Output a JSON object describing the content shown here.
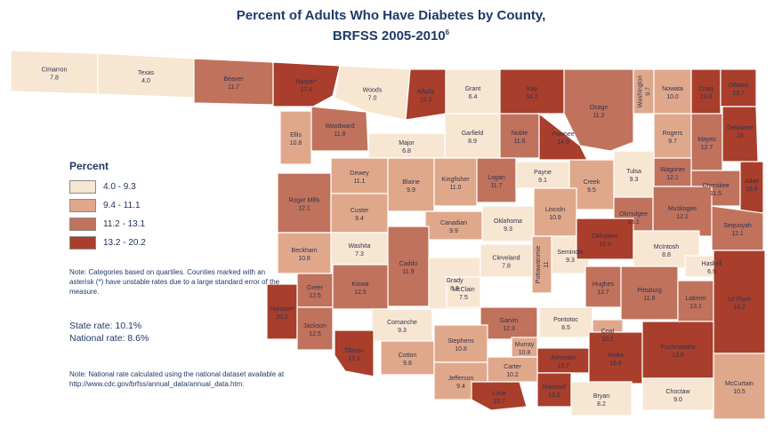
{
  "title_line1": "Percent of Adults Who Have Diabetes by County,",
  "title_line2": "BRFSS 2005-2010",
  "title_sup": "6",
  "legend": {
    "title": "Percent",
    "items": [
      {
        "label": "4.0 - 9.3",
        "color": "#f7e6d2"
      },
      {
        "label": "9.4 - 11.1",
        "color": "#e0a88b"
      },
      {
        "label": "11.2 - 13.1",
        "color": "#c0725c"
      },
      {
        "label": "13.2 - 20.2",
        "color": "#a83e2b"
      }
    ]
  },
  "note_quartiles": "Note: Categories based on quartiles. Counties marked with an asterisk (*) have unstable rates due to a large standard error of the measure.",
  "state_rate": "State rate: 10.1%",
  "national_rate": "National rate: 8.6%",
  "note_national": "Note: National rate calculated using the national dataset available at http://www.cdc.gov/brfss/annual_data/annual_data.htm.",
  "counties": [
    {
      "name": "Cimarron",
      "rate": "7.8",
      "class": 1
    },
    {
      "name": "Texas",
      "rate": "4.0",
      "class": 1
    },
    {
      "name": "Beaver",
      "rate": "11.7",
      "class": 3
    },
    {
      "name": "Harper*",
      "rate": "17.4",
      "class": 4
    },
    {
      "name": "Woods",
      "rate": "7.0",
      "class": 1
    },
    {
      "name": "Alfalfa",
      "rate": "15.3",
      "class": 4
    },
    {
      "name": "Grant",
      "rate": "6.4",
      "class": 1
    },
    {
      "name": "Kay",
      "rate": "14.2",
      "class": 4
    },
    {
      "name": "Osage",
      "rate": "11.2",
      "class": 3
    },
    {
      "name": "Washington",
      "rate": "9.7",
      "class": 2
    },
    {
      "name": "Nowata",
      "rate": "10.0",
      "class": 2
    },
    {
      "name": "Craig",
      "rate": "13.8",
      "class": 4
    },
    {
      "name": "Ottawa",
      "rate": "13.7",
      "class": 4
    },
    {
      "name": "Ellis",
      "rate": "10.8",
      "class": 2
    },
    {
      "name": "Woodward",
      "rate": "11.8",
      "class": 3
    },
    {
      "name": "Major",
      "rate": "6.8",
      "class": 1
    },
    {
      "name": "Garfield",
      "rate": "8.9",
      "class": 1
    },
    {
      "name": "Noble",
      "rate": "11.6",
      "class": 3
    },
    {
      "name": "Pawnee",
      "rate": "14.9",
      "class": 4
    },
    {
      "name": "Rogers",
      "rate": "9.7",
      "class": 2
    },
    {
      "name": "Mayes",
      "rate": "12.7",
      "class": 3
    },
    {
      "name": "Delaware",
      "rate": "15",
      "class": 4
    },
    {
      "name": "Dewey",
      "rate": "11.1",
      "class": 2
    },
    {
      "name": "Blaine",
      "rate": "9.9",
      "class": 2
    },
    {
      "name": "Kingfisher",
      "rate": "11.0",
      "class": 2
    },
    {
      "name": "Logan",
      "rate": "11.7",
      "class": 3
    },
    {
      "name": "Payne",
      "rate": "9.1",
      "class": 1
    },
    {
      "name": "Creek",
      "rate": "9.5",
      "class": 2
    },
    {
      "name": "Tulsa",
      "rate": "9.3",
      "class": 1
    },
    {
      "name": "Wagoner",
      "rate": "12.1",
      "class": 3
    },
    {
      "name": "Cherokee",
      "rate": "11.5",
      "class": 3
    },
    {
      "name": "Adair",
      "rate": "16.6",
      "class": 4
    },
    {
      "name": "Roger Mills",
      "rate": "12.1",
      "class": 3
    },
    {
      "name": "Custer",
      "rate": "9.4",
      "class": 2
    },
    {
      "name": "Canadian",
      "rate": "9.9",
      "class": 2
    },
    {
      "name": "Oklahoma",
      "rate": "9.3",
      "class": 1
    },
    {
      "name": "Lincoln",
      "rate": "10.9",
      "class": 2
    },
    {
      "name": "Okmulgee",
      "rate": "13.1",
      "class": 3
    },
    {
      "name": "Muskogee",
      "rate": "12.1",
      "class": 3
    },
    {
      "name": "Sequoyah",
      "rate": "12.1",
      "class": 3
    },
    {
      "name": "Beckham",
      "rate": "10.8",
      "class": 2
    },
    {
      "name": "Washita",
      "rate": "7.3",
      "class": 1
    },
    {
      "name": "Caddo",
      "rate": "11.9",
      "class": 3
    },
    {
      "name": "Grady",
      "rate": "6.3",
      "class": 1
    },
    {
      "name": "Cleveland",
      "rate": "7.8",
      "class": 1
    },
    {
      "name": "Pottawatomie",
      "rate": "11",
      "class": 2
    },
    {
      "name": "Seminole",
      "rate": "9.3",
      "class": 1
    },
    {
      "name": "Okfuskee",
      "rate": "15.9",
      "class": 4
    },
    {
      "name": "McIntosh",
      "rate": "8.8",
      "class": 1
    },
    {
      "name": "Haskell",
      "rate": "6.9",
      "class": 1
    },
    {
      "name": "Greer",
      "rate": "12.5",
      "class": 3
    },
    {
      "name": "Kiowa",
      "rate": "12.5",
      "class": 3
    },
    {
      "name": "McClain",
      "rate": "7.5",
      "class": 1
    },
    {
      "name": "Hughes",
      "rate": "12.7",
      "class": 3
    },
    {
      "name": "Pittsburg",
      "rate": "11.6",
      "class": 3
    },
    {
      "name": "Latimer",
      "rate": "13.1",
      "class": 3
    },
    {
      "name": "Le Flore",
      "rate": "14.2",
      "class": 4
    },
    {
      "name": "Harmon*",
      "rate": "20.2",
      "class": 4
    },
    {
      "name": "Jackson",
      "rate": "12.5",
      "class": 3
    },
    {
      "name": "Comanche",
      "rate": "9.3",
      "class": 1
    },
    {
      "name": "Garvin",
      "rate": "12.3",
      "class": 3
    },
    {
      "name": "Pontotoc",
      "rate": "8.5",
      "class": 1
    },
    {
      "name": "Coal",
      "rate": "10.1",
      "class": 2
    },
    {
      "name": "Tillman",
      "rate": "17.1",
      "class": 4
    },
    {
      "name": "Cotton",
      "rate": "9.8",
      "class": 2
    },
    {
      "name": "Stephens",
      "rate": "10.8",
      "class": 2
    },
    {
      "name": "Murray",
      "rate": "10.8",
      "class": 2
    },
    {
      "name": "Johnston",
      "rate": "13.7",
      "class": 4
    },
    {
      "name": "Atoka",
      "rate": "16.8",
      "class": 4
    },
    {
      "name": "Pushmataha",
      "rate": "13.6",
      "class": 4
    },
    {
      "name": "McCurtain",
      "rate": "10.5",
      "class": 2
    },
    {
      "name": "Jefferson",
      "rate": "9.4",
      "class": 2
    },
    {
      "name": "Carter",
      "rate": "10.2",
      "class": 2
    },
    {
      "name": "Love",
      "rate": "15.7",
      "class": 4
    },
    {
      "name": "Marshall",
      "rate": "13.9",
      "class": 4
    },
    {
      "name": "Bryan",
      "rate": "8.2",
      "class": 1
    },
    {
      "name": "Choctaw",
      "rate": "9.0",
      "class": 1
    }
  ]
}
